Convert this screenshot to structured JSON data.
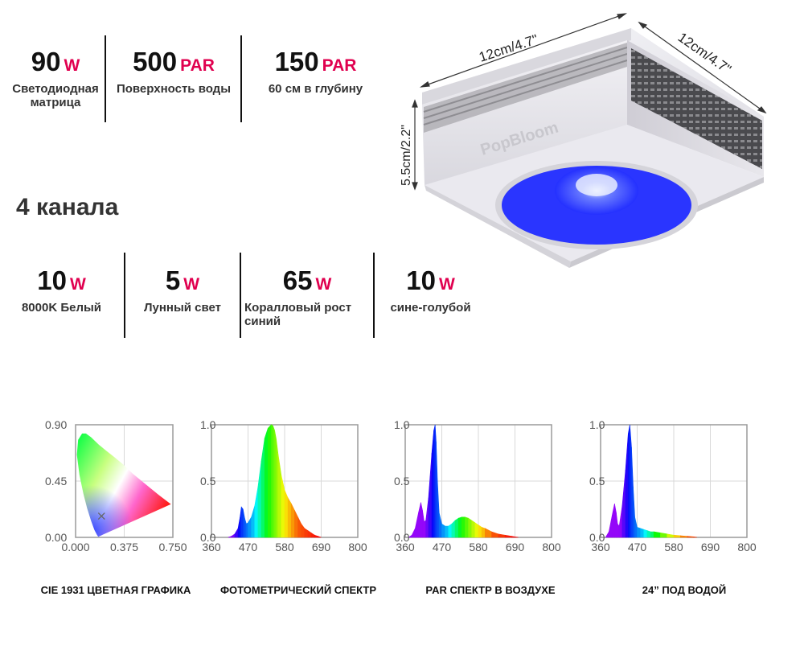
{
  "top_specs": [
    {
      "value": "90",
      "unit": "W",
      "desc": "Светодиодная матрица"
    },
    {
      "value": "500",
      "unit": "PAR",
      "desc": "Поверхность воды"
    },
    {
      "value": "150",
      "unit": "PAR",
      "desc": "60 см в глубину"
    }
  ],
  "channels_heading": "4 канала",
  "channels": [
    {
      "value": "10",
      "unit": "W",
      "desc": "8000K Белый"
    },
    {
      "value": "5",
      "unit": "W",
      "desc": "Лунный свет"
    },
    {
      "value": "65",
      "unit": "W",
      "desc": "Коралловый рост синий"
    },
    {
      "value": "10",
      "unit": "W",
      "desc": "сине-голубой"
    }
  ],
  "product": {
    "brand": "PopBloom",
    "dim_width": "12cm/4.7\"",
    "dim_depth": "12cm/4.7\"",
    "dim_height": "5.5cm/2.2\"",
    "lens_color": "#2a35ff",
    "body_color": "#ecebf0"
  },
  "captions": [
    "CIE 1931 ЦВЕТНАЯ ГРАФИКА",
    "ФОТОМЕТРИЧЕСКИЙ СПЕКТР",
    "PAR СПЕКТР В ВОЗДУХЕ",
    "24”  ПОД ВОДОЙ"
  ],
  "chart_data": [
    {
      "type": "scatter",
      "title": "CIE 1931 ЦВЕТНАЯ ГРАФИКА",
      "x_ticks": [
        "0.000",
        "0.375",
        "0.750"
      ],
      "y_ticks": [
        "0.00",
        "0.45",
        "0.90"
      ],
      "xlim": [
        0,
        0.75
      ],
      "ylim": [
        0,
        0.9
      ],
      "grid": true,
      "locus": [
        [
          0.175,
          0.005
        ],
        [
          0.165,
          0.02
        ],
        [
          0.145,
          0.06
        ],
        [
          0.12,
          0.13
        ],
        [
          0.09,
          0.23
        ],
        [
          0.06,
          0.35
        ],
        [
          0.03,
          0.5
        ],
        [
          0.01,
          0.66
        ],
        [
          0.02,
          0.78
        ],
        [
          0.05,
          0.83
        ],
        [
          0.08,
          0.83
        ],
        [
          0.12,
          0.8
        ],
        [
          0.18,
          0.74
        ],
        [
          0.24,
          0.69
        ],
        [
          0.3,
          0.64
        ],
        [
          0.37,
          0.58
        ],
        [
          0.44,
          0.51
        ],
        [
          0.51,
          0.45
        ],
        [
          0.58,
          0.39
        ],
        [
          0.64,
          0.34
        ],
        [
          0.69,
          0.3
        ],
        [
          0.735,
          0.265
        ]
      ],
      "point": {
        "x": 0.2,
        "y": 0.17
      }
    },
    {
      "type": "area",
      "title": "ФОТОМЕТРИЧЕСКИЙ СПЕКТР",
      "x_ticks": [
        "360",
        "470",
        "580",
        "690",
        "800"
      ],
      "y_ticks": [
        "0.0",
        "0.5",
        "1.0"
      ],
      "xlim": [
        360,
        800
      ],
      "ylim": [
        0,
        1
      ],
      "grid": true,
      "x": [
        410,
        420,
        430,
        440,
        446,
        450,
        455,
        460,
        465,
        470,
        480,
        490,
        500,
        510,
        520,
        530,
        540,
        545,
        550,
        555,
        560,
        570,
        580,
        590,
        600,
        610,
        620,
        630,
        640,
        650,
        660,
        670,
        680,
        690
      ],
      "values": [
        0,
        0.01,
        0.03,
        0.08,
        0.18,
        0.27,
        0.25,
        0.17,
        0.12,
        0.13,
        0.18,
        0.28,
        0.45,
        0.68,
        0.88,
        0.97,
        1.0,
        0.99,
        0.95,
        0.87,
        0.75,
        0.55,
        0.42,
        0.35,
        0.3,
        0.24,
        0.18,
        0.12,
        0.08,
        0.06,
        0.04,
        0.02,
        0.01,
        0
      ]
    },
    {
      "type": "area",
      "title": "PAR СПЕКТР В ВОЗДУХЕ",
      "x_ticks": [
        "360",
        "470",
        "580",
        "690",
        "800"
      ],
      "y_ticks": [
        "0.0",
        "0.5",
        "1.0"
      ],
      "xlim": [
        360,
        800
      ],
      "ylim": [
        0,
        1
      ],
      "grid": true,
      "x": [
        370,
        380,
        390,
        400,
        407,
        412,
        417,
        422,
        430,
        440,
        446,
        450,
        453,
        457,
        462,
        470,
        480,
        490,
        500,
        510,
        520,
        530,
        540,
        550,
        560,
        570,
        580,
        590,
        600,
        620,
        640,
        660,
        680,
        700
      ],
      "values": [
        0,
        0.02,
        0.08,
        0.22,
        0.31,
        0.24,
        0.14,
        0.15,
        0.35,
        0.75,
        0.95,
        1.0,
        0.85,
        0.5,
        0.22,
        0.12,
        0.1,
        0.1,
        0.12,
        0.15,
        0.17,
        0.18,
        0.18,
        0.17,
        0.15,
        0.13,
        0.11,
        0.09,
        0.08,
        0.05,
        0.03,
        0.02,
        0.01,
        0
      ]
    },
    {
      "type": "area",
      "title": "24”  ПОД ВОДОЙ",
      "x_ticks": [
        "360",
        "470",
        "580",
        "690",
        "800"
      ],
      "y_ticks": [
        "0.0",
        "0.5",
        "1.0"
      ],
      "xlim": [
        360,
        800
      ],
      "ylim": [
        0,
        1
      ],
      "grid": true,
      "x": [
        375,
        385,
        395,
        402,
        407,
        411,
        416,
        425,
        435,
        443,
        448,
        453,
        458,
        463,
        470,
        480,
        490,
        500,
        510,
        520,
        540,
        560,
        580,
        600,
        620,
        640,
        650
      ],
      "values": [
        0,
        0.05,
        0.2,
        0.3,
        0.22,
        0.12,
        0.1,
        0.28,
        0.6,
        0.92,
        1.0,
        0.8,
        0.45,
        0.18,
        0.09,
        0.08,
        0.07,
        0.06,
        0.05,
        0.05,
        0.04,
        0.03,
        0.02,
        0.015,
        0.01,
        0.005,
        0
      ]
    }
  ]
}
